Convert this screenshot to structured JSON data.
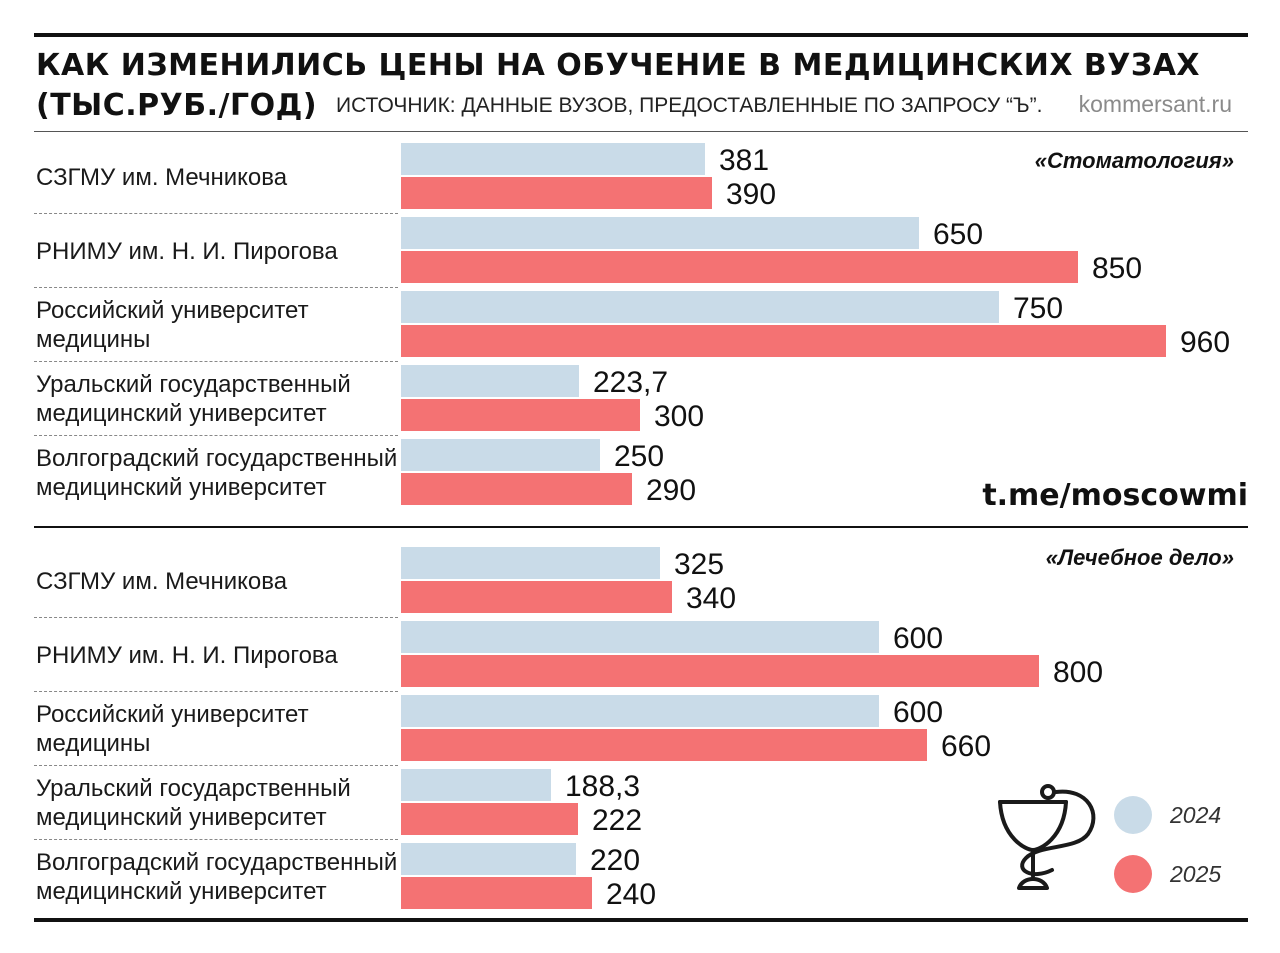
{
  "header": {
    "title_line1": "КАК ИЗМЕНИЛИСЬ ЦЕНЫ НА ОБУЧЕНИЕ В МЕДИЦИНСКИХ ВУЗАХ",
    "title_line2": "(ТЫС.РУБ./ГОД)",
    "source": "ИСТОЧНИК: ДАННЫЕ ВУЗОВ, ПРЕДОСТАВЛЕННЫЕ ПО ЗАПРОСУ “Ъ”.",
    "site": "kommersant.ru"
  },
  "watermark": "t.me/moscowmi",
  "colors": {
    "y2024": "#c9dbe8",
    "y2025": "#f47273"
  },
  "emblem_icon": "bowl-of-hygieia-icon",
  "chart_data": [
    {
      "type": "bar",
      "orientation": "horizontal",
      "section_label": "«Стоматология»",
      "categories": [
        [
          "СЗГМУ им. Мечникова"
        ],
        [
          "РНИМУ им. Н. И. Пирогова"
        ],
        [
          "Российский университет",
          "медицины"
        ],
        [
          "Уральский государственный",
          "медицинский университет"
        ],
        [
          "Волгоградский государственный",
          "медицинский университет"
        ]
      ],
      "series": [
        {
          "name": "2024",
          "values": [
            381,
            650,
            750,
            223.7,
            250
          ],
          "labels": [
            "381",
            "650",
            "750",
            "223,7",
            "250"
          ]
        },
        {
          "name": "2025",
          "values": [
            390,
            850,
            960,
            300,
            290
          ],
          "labels": [
            "390",
            "850",
            "960",
            "300",
            "290"
          ]
        }
      ],
      "xlim": [
        0,
        960
      ],
      "grid": false
    },
    {
      "type": "bar",
      "orientation": "horizontal",
      "section_label": "«Лечебное дело»",
      "categories": [
        [
          "СЗГМУ им. Мечникова"
        ],
        [
          "РНИМУ им. Н. И. Пирогова"
        ],
        [
          "Российский университет",
          "медицины"
        ],
        [
          "Уральский государственный",
          "медицинский университет"
        ],
        [
          "Волгоградский государственный",
          "медицинский университет"
        ]
      ],
      "series": [
        {
          "name": "2024",
          "values": [
            325,
            600,
            600,
            188.3,
            220
          ],
          "labels": [
            "325",
            "600",
            "600",
            "188,3",
            "220"
          ]
        },
        {
          "name": "2025",
          "values": [
            340,
            800,
            660,
            222,
            240
          ],
          "labels": [
            "340",
            "800",
            "660",
            "222",
            "240"
          ]
        }
      ],
      "xlim": [
        0,
        960
      ],
      "grid": false
    }
  ],
  "legend": {
    "placement": "bottom-right",
    "items": [
      {
        "name": "2024",
        "label": "2024"
      },
      {
        "name": "2025",
        "label": "2025"
      }
    ]
  }
}
